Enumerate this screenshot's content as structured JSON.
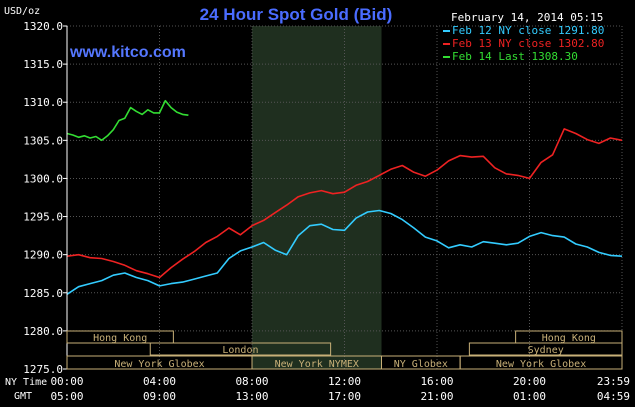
{
  "chart_data": {
    "type": "line",
    "title": "24 Hour Spot Gold (Bid)",
    "site": "www.kitco.com",
    "date": "February 14, 2014 05:15",
    "ylabel": "USD/oz",
    "ylim": [
      1275.0,
      1320.0
    ],
    "yticks": [
      "1275.0",
      "1280.0",
      "1285.0",
      "1290.0",
      "1295.0",
      "1300.0",
      "1305.0",
      "1310.0",
      "1315.0",
      "1320.0"
    ],
    "x_row1_label": "NY Time",
    "x_row1_ticks": [
      "00:00",
      "04:00",
      "08:00",
      "12:00",
      "16:00",
      "20:00",
      "23:59"
    ],
    "x_row2_label": "GMT",
    "x_row2_ticks": [
      "05:00",
      "09:00",
      "13:00",
      "17:00",
      "21:00",
      "01:00",
      "04:59"
    ],
    "xlim_hours": [
      0,
      24
    ],
    "grid": true,
    "legend_position": "top-right",
    "series": [
      {
        "name": "Feb 12 NY close 1291.80",
        "color": "#33ccff",
        "x": [
          0,
          0.5,
          1,
          1.5,
          2,
          2.5,
          3,
          3.5,
          4,
          4.5,
          5,
          5.5,
          6,
          6.5,
          7,
          7.5,
          8,
          8.5,
          9,
          9.5,
          10,
          10.5,
          11,
          11.5,
          12,
          12.5,
          13,
          13.5,
          14,
          14.5,
          15,
          15.5,
          16,
          16.5,
          17,
          17.5,
          18,
          18.5,
          19,
          19.5,
          20,
          20.5,
          21,
          21.5,
          22,
          22.5,
          23,
          23.5,
          24
        ],
        "y": [
          1284.8,
          1285.8,
          1286.2,
          1286.6,
          1287.3,
          1287.6,
          1287.0,
          1286.6,
          1285.9,
          1286.2,
          1286.4,
          1286.8,
          1287.2,
          1287.6,
          1289.5,
          1290.5,
          1291.0,
          1291.6,
          1290.6,
          1290.0,
          1292.5,
          1293.8,
          1294.0,
          1293.3,
          1293.2,
          1294.8,
          1295.6,
          1295.8,
          1295.4,
          1294.6,
          1293.5,
          1292.3,
          1291.8,
          1290.9,
          1291.3,
          1291.0,
          1291.7,
          1291.5,
          1291.3,
          1291.5,
          1292.4,
          1292.9,
          1292.5,
          1292.3,
          1291.4,
          1291.0,
          1290.3,
          1289.9,
          1289.8
        ]
      },
      {
        "name": "Feb 13 NY close 1302.80",
        "color": "#ee2222",
        "x": [
          0,
          0.5,
          1,
          1.5,
          2,
          2.5,
          3,
          3.5,
          4,
          4.5,
          5,
          5.5,
          6,
          6.5,
          7,
          7.5,
          8,
          8.5,
          9,
          9.5,
          10,
          10.5,
          11,
          11.5,
          12,
          12.5,
          13,
          13.5,
          14,
          14.5,
          15,
          15.5,
          16,
          16.5,
          17,
          17.5,
          18,
          18.5,
          19,
          19.5,
          20,
          20.5,
          21,
          21.5,
          22,
          22.5,
          23,
          23.5,
          24
        ],
        "y": [
          1289.8,
          1290.0,
          1289.6,
          1289.5,
          1289.1,
          1288.6,
          1287.9,
          1287.5,
          1287.0,
          1288.3,
          1289.4,
          1290.4,
          1291.6,
          1292.4,
          1293.5,
          1292.6,
          1293.8,
          1294.5,
          1295.5,
          1296.5,
          1297.6,
          1298.1,
          1298.4,
          1298.0,
          1298.2,
          1299.1,
          1299.6,
          1300.4,
          1301.2,
          1301.7,
          1300.8,
          1300.3,
          1301.1,
          1302.3,
          1303.0,
          1302.8,
          1302.9,
          1301.4,
          1300.6,
          1300.4,
          1300.0,
          1302.1,
          1303.1,
          1306.5,
          1305.9,
          1305.1,
          1304.6,
          1305.3,
          1305.0
        ]
      },
      {
        "name": "Feb 14 Last 1308.30",
        "color": "#33dd33",
        "x": [
          0,
          0.25,
          0.5,
          0.75,
          1,
          1.25,
          1.5,
          1.75,
          2,
          2.25,
          2.5,
          2.75,
          3,
          3.25,
          3.5,
          3.75,
          4,
          4.25,
          4.5,
          4.75,
          5,
          5.25
        ],
        "y": [
          1305.9,
          1305.7,
          1305.4,
          1305.6,
          1305.3,
          1305.5,
          1305.0,
          1305.6,
          1306.4,
          1307.6,
          1307.9,
          1309.3,
          1308.8,
          1308.4,
          1309.0,
          1308.6,
          1308.6,
          1310.2,
          1309.3,
          1308.7,
          1308.4,
          1308.3
        ]
      }
    ],
    "sessions_row1": [
      {
        "label": "Hong Kong",
        "start": 0,
        "end": 4.6
      },
      {
        "label": "Hong Kong",
        "start": 19.4,
        "end": 24
      }
    ],
    "sessions_row2": [
      {
        "label": "London",
        "start": 3.6,
        "end": 11.4
      },
      {
        "label": "Sydney",
        "start": 17.4,
        "end": 24
      }
    ],
    "sessions_row3": [
      {
        "label": "New York Globex",
        "start": 0,
        "end": 8.0
      },
      {
        "label": "New York NYMEX",
        "start": 8.0,
        "end": 13.6
      },
      {
        "label": "NY Globex",
        "start": 13.6,
        "end": 17.0
      },
      {
        "label": "New York Globex",
        "start": 17.0,
        "end": 24
      }
    ],
    "shaded_region_hours": [
      8.0,
      13.6
    ]
  }
}
